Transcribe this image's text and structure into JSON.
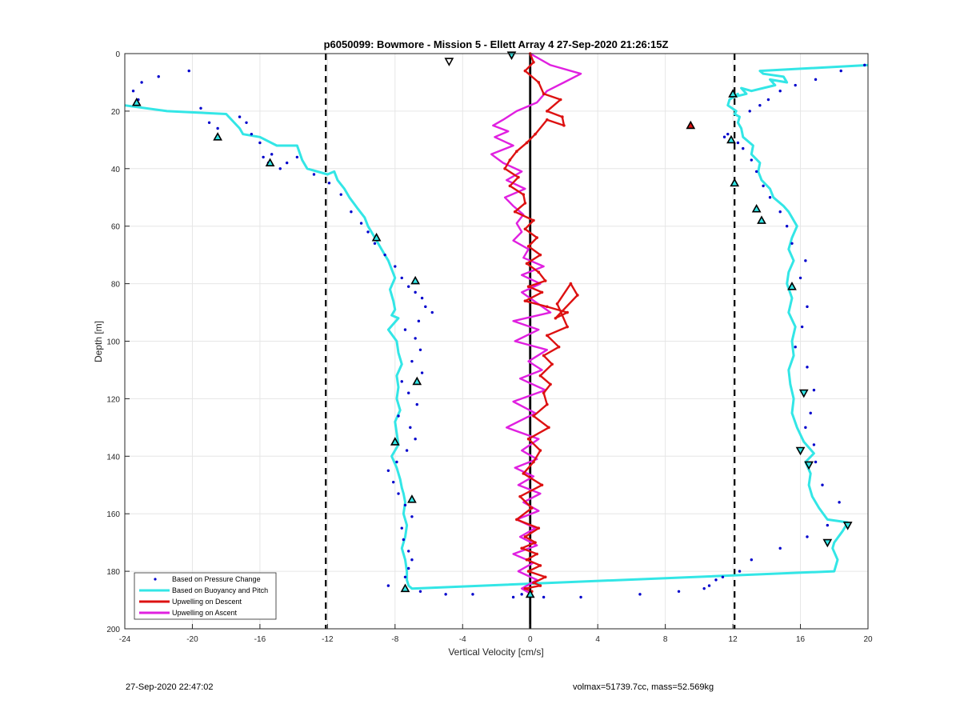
{
  "chart_data": {
    "type": "scatter",
    "title": "p6050099: Bowmore - Mission 5 - Ellett Array 4 27-Sep-2020 21:26:15Z",
    "xlabel": "Vertical Velocity [cm/s]",
    "ylabel": "Depth [m]",
    "xlim": [
      -24,
      20
    ],
    "ylim": [
      200,
      0
    ],
    "y_reversed": true,
    "grid": true,
    "xticks": [
      "-24",
      "-20",
      "-16",
      "-12",
      "-8",
      "-4",
      "0",
      "4",
      "8",
      "12",
      "16",
      "20"
    ],
    "xtick_values": [
      -24,
      -20,
      -16,
      -12,
      -8,
      -4,
      0,
      4,
      8,
      12,
      16,
      20
    ],
    "yticks": [
      "0",
      "20",
      "40",
      "60",
      "80",
      "100",
      "120",
      "140",
      "160",
      "180",
      "200"
    ],
    "ytick_values": [
      0,
      20,
      40,
      60,
      80,
      100,
      120,
      140,
      160,
      180,
      200
    ],
    "legend_position": "bottom-left",
    "colors": {
      "pressure": "#0000cc",
      "buoyancy": "#33e6e6",
      "descent": "#dd1111",
      "ascent": "#e020e0",
      "reference": "#000000"
    },
    "reference_lines": [
      {
        "x": -12.1,
        "style": "dashed"
      },
      {
        "x": 12.1,
        "style": "dashed"
      },
      {
        "x": 0,
        "style": "solid"
      }
    ],
    "series": [
      {
        "name": "Based on Pressure Change",
        "style": "dots",
        "x": [
          -23.5,
          -23.2,
          -23.0,
          -22.0,
          -20.2,
          -19.5,
          -19.0,
          -18.5,
          -17.2,
          -16.8,
          -16.5,
          -16.0,
          -15.8,
          -15.3,
          -15.5,
          -14.8,
          -14.4,
          -13.8,
          -12.8,
          -11.9,
          -11.2,
          -10.6,
          -10.0,
          -9.6,
          -9.2,
          -8.6,
          -8.0,
          -7.6,
          -7.2,
          -6.8,
          -6.4,
          -6.2,
          -5.8,
          -6.6,
          -7.4,
          -6.8,
          -6.5,
          -7.0,
          -6.4,
          -7.6,
          -7.2,
          -6.7,
          -7.8,
          -7.1,
          -6.8,
          -7.3,
          -7.9,
          -8.4,
          -8.1,
          -7.8,
          -7.4,
          -7.0,
          -7.6,
          -7.5,
          -7.2,
          -7.0,
          -7.2,
          -7.4,
          -8.4,
          -6.5,
          -5.0,
          -3.4,
          -1.0,
          -0.5,
          0.8,
          3.0,
          6.5,
          8.8,
          10.3,
          10.6,
          11.0,
          11.4,
          11.7,
          11.5,
          12.3,
          12.6,
          13.1,
          13.4,
          13.8,
          14.2,
          14.8,
          15.2,
          15.5,
          16.3,
          16.0,
          16.4,
          16.1,
          15.7,
          16.4,
          16.8,
          16.6,
          16.3,
          16.8,
          16.9,
          17.3,
          18.3,
          17.6,
          16.4,
          14.8,
          13.1,
          12.4,
          13.0,
          13.6,
          14.1,
          14.8,
          15.7,
          16.9,
          18.4,
          19.8
        ],
        "y": [
          13,
          16,
          10,
          8,
          6,
          19,
          24,
          26,
          22,
          24,
          28,
          31,
          36,
          35,
          38,
          40,
          38,
          36,
          42,
          45,
          49,
          55,
          59,
          62,
          66,
          70,
          74,
          78,
          81,
          83,
          85,
          88,
          90,
          93,
          96,
          99,
          103,
          107,
          111,
          114,
          118,
          122,
          126,
          130,
          134,
          138,
          142,
          145,
          149,
          153,
          157,
          161,
          165,
          169,
          173,
          176,
          179,
          182,
          185,
          187,
          188,
          188,
          189,
          188,
          189,
          189,
          188,
          187,
          186,
          185,
          183,
          182,
          28,
          29,
          31,
          33,
          37,
          41,
          46,
          50,
          55,
          60,
          66,
          72,
          78,
          88,
          95,
          102,
          109,
          117,
          125,
          130,
          136,
          142,
          150,
          156,
          164,
          168,
          172,
          176,
          180,
          20,
          18,
          16,
          13,
          11,
          9,
          6,
          4
        ]
      },
      {
        "name": "Based on Buoyancy and Pitch",
        "style": "line",
        "x": [
          -24.0,
          -21.5,
          -18.0,
          -17.2,
          -17.0,
          -16.0,
          -15.0,
          -13.8,
          -13.5,
          -13.2,
          -12.0,
          -11.6,
          -11.4,
          -11.0,
          -10.7,
          -10.2,
          -9.8,
          -9.6,
          -9.3,
          -9.0,
          -8.7,
          -8.4,
          -8.2,
          -8.0,
          -8.3,
          -8.1,
          -8.0,
          -8.2,
          -7.8,
          -8.4,
          -7.9,
          -7.8,
          -7.6,
          -7.9,
          -7.8,
          -7.9,
          -7.7,
          -8.0,
          -7.9,
          -7.8,
          -8.2,
          -7.9,
          -7.7,
          -7.6,
          -7.5,
          -7.4,
          -7.5,
          -7.3,
          -7.4,
          -7.6,
          -7.4,
          -7.3,
          -7.3,
          -7.2,
          -7.0,
          18.0,
          18.2,
          17.9,
          18.0,
          18.5,
          18.8,
          17.6,
          17.1,
          16.7,
          16.5,
          16.6,
          16.3,
          16.8,
          16.2,
          15.8,
          15.5,
          15.6,
          15.4,
          15.3,
          15.6,
          15.5,
          15.7,
          15.3,
          15.5,
          15.2,
          15.3,
          15.6,
          15.3,
          15.5,
          15.8,
          15.5,
          15.3,
          15.0,
          14.4,
          14.2,
          13.7,
          13.5,
          13.6,
          13.1,
          13.2,
          12.6,
          12.5,
          12.3,
          12.4,
          12.1,
          12.2,
          11.7,
          11.8,
          12.3,
          12.1,
          12.8,
          12.5,
          13.1,
          14.5,
          14.2,
          15.2,
          15.0,
          13.8,
          13.6,
          20.0
        ],
        "y": [
          18,
          20,
          21,
          26,
          28,
          29,
          32,
          32,
          37,
          40,
          42,
          41,
          44,
          47,
          50,
          54,
          57,
          60,
          63,
          66,
          69,
          72,
          75,
          78,
          82,
          86,
          89,
          91,
          92,
          96,
          100,
          104,
          108,
          112,
          116,
          120,
          124,
          128,
          132,
          136,
          140,
          144,
          148,
          151,
          153,
          156,
          160,
          164,
          168,
          172,
          176,
          180,
          183,
          185,
          186,
          180,
          176,
          172,
          170,
          166,
          163,
          162,
          158,
          154,
          150,
          146,
          142,
          139,
          135,
          130,
          125,
          120,
          115,
          110,
          105,
          100,
          95,
          90,
          85,
          80,
          76,
          72,
          68,
          64,
          60,
          57,
          55,
          53,
          50,
          47,
          44,
          41,
          38,
          35,
          32,
          29,
          26,
          24,
          22,
          21,
          20,
          18,
          16,
          14,
          15,
          14,
          12,
          13,
          11,
          9,
          10,
          8,
          7,
          6,
          4
        ]
      },
      {
        "name": "Upwelling on Descent",
        "style": "line-markers",
        "x": [
          0.0,
          0.2,
          -0.3,
          0.5,
          0.8,
          1.8,
          1.0,
          1.9,
          2.0,
          1.0,
          0.3,
          -0.2,
          -0.8,
          -1.2,
          -1.5,
          -0.7,
          -1.2,
          -0.4,
          -0.3,
          -0.9,
          0.2,
          -0.3,
          0.4,
          -0.1,
          0.6,
          -0.2,
          0.5,
          0.9,
          -0.1,
          0.7,
          -0.3,
          1.0,
          2.2,
          1.5,
          2.8,
          2.4,
          1.6,
          2.2,
          1.0,
          1.7,
          0.8,
          1.3,
          0.6,
          1.2,
          0.8,
          1.0,
          0.2,
          1.1,
          -0.1,
          0.6,
          0.2,
          -0.4,
          0.7,
          -0.6,
          0.1,
          -0.8,
          0.5,
          -0.3,
          0.3,
          -0.5,
          0.4,
          -0.2,
          0.6,
          -0.1,
          0.9,
          0.2,
          0.6,
          -0.3,
          0.1
        ],
        "y": [
          0,
          3,
          6,
          10,
          14,
          16,
          20,
          22,
          25,
          23,
          28,
          31,
          34,
          37,
          40,
          43,
          46,
          49,
          52,
          55,
          58,
          61,
          64,
          67,
          70,
          73,
          76,
          79,
          81,
          83,
          86,
          88,
          90,
          92,
          84,
          80,
          87,
          95,
          98,
          102,
          105,
          108,
          112,
          115,
          118,
          122,
          126,
          130,
          134,
          138,
          142,
          146,
          150,
          154,
          158,
          162,
          165,
          168,
          170,
          172,
          174,
          176,
          178,
          180,
          182,
          184,
          185,
          186,
          187
        ]
      },
      {
        "name": "Upwelling on Ascent",
        "style": "line",
        "x": [
          0.0,
          1.2,
          3.0,
          2.0,
          1.0,
          0.4,
          -0.8,
          -1.6,
          -2.2,
          -1.3,
          -2.1,
          -1.0,
          -2.3,
          -1.6,
          -0.5,
          -1.4,
          -0.3,
          -1.5,
          -1.0,
          -0.4,
          -0.8,
          -0.5,
          -1.0,
          -0.1,
          -0.4,
          0.8,
          -0.5,
          0.6,
          -0.5,
          1.2,
          -1.0,
          0.5,
          -0.9,
          1.0,
          -0.1,
          0.7,
          -0.6,
          0.9,
          -1.0,
          0.3,
          -1.4,
          0.5,
          -0.5,
          0.4,
          -0.9,
          0.2,
          -0.7,
          0.6,
          -0.4,
          0.5,
          -0.8,
          0.3,
          -0.6,
          0.4,
          -1.0,
          0.2,
          -0.7,
          0.4,
          -0.5,
          0.1
        ],
        "y": [
          0,
          4,
          7,
          10,
          13,
          17,
          20,
          23,
          25,
          27,
          29,
          32,
          35,
          38,
          41,
          44,
          47,
          50,
          53,
          56,
          59,
          62,
          65,
          68,
          71,
          74,
          77,
          80,
          83,
          90,
          93,
          96,
          100,
          103,
          107,
          110,
          113,
          117,
          121,
          125,
          130,
          134,
          138,
          141,
          144,
          147,
          150,
          153,
          156,
          159,
          162,
          165,
          168,
          171,
          174,
          177,
          180,
          183,
          186,
          188
        ]
      }
    ],
    "triangle_markers": [
      {
        "x": -1.1,
        "y": 0.5,
        "dir": "down",
        "color": "#33e6e6"
      },
      {
        "x": -4.8,
        "y": 2.7,
        "dir": "down",
        "color": "#ffffff"
      },
      {
        "x": -23.3,
        "y": 17,
        "dir": "up",
        "color": "#33e6e6"
      },
      {
        "x": -18.5,
        "y": 29,
        "dir": "up",
        "color": "#33e6e6"
      },
      {
        "x": -15.4,
        "y": 38,
        "dir": "up",
        "color": "#33e6e6"
      },
      {
        "x": -9.1,
        "y": 64,
        "dir": "up",
        "color": "#33e6e6"
      },
      {
        "x": -6.8,
        "y": 79,
        "dir": "up",
        "color": "#33e6e6"
      },
      {
        "x": -6.7,
        "y": 114,
        "dir": "up",
        "color": "#33e6e6"
      },
      {
        "x": -8.0,
        "y": 135,
        "dir": "up",
        "color": "#33e6e6"
      },
      {
        "x": -7.0,
        "y": 155,
        "dir": "up",
        "color": "#33e6e6"
      },
      {
        "x": -7.4,
        "y": 186,
        "dir": "up",
        "color": "#33e6e6"
      },
      {
        "x": 0.0,
        "y": 188,
        "dir": "up",
        "color": "#33e6e6"
      },
      {
        "x": 9.5,
        "y": 25,
        "dir": "up",
        "color": "#dd1111"
      },
      {
        "x": 12.0,
        "y": 14,
        "dir": "up",
        "color": "#33e6e6"
      },
      {
        "x": 11.9,
        "y": 30,
        "dir": "up",
        "color": "#33e6e6"
      },
      {
        "x": 12.1,
        "y": 45,
        "dir": "up",
        "color": "#33e6e6"
      },
      {
        "x": 13.4,
        "y": 54,
        "dir": "up",
        "color": "#33e6e6"
      },
      {
        "x": 13.7,
        "y": 58,
        "dir": "up",
        "color": "#33e6e6"
      },
      {
        "x": 15.5,
        "y": 81,
        "dir": "up",
        "color": "#33e6e6"
      },
      {
        "x": 16.2,
        "y": 118,
        "dir": "down",
        "color": "#33e6e6"
      },
      {
        "x": 16.0,
        "y": 138,
        "dir": "down",
        "color": "#33e6e6"
      },
      {
        "x": 16.5,
        "y": 143,
        "dir": "down",
        "color": "#33e6e6"
      },
      {
        "x": 18.8,
        "y": 164,
        "dir": "down",
        "color": "#33e6e6"
      },
      {
        "x": 17.6,
        "y": 170,
        "dir": "down",
        "color": "#33e6e6"
      }
    ]
  },
  "footer": {
    "timestamp": "27-Sep-2020 22:47:02",
    "vehicle_info": "volmax=51739.7cc, mass=52.569kg"
  }
}
